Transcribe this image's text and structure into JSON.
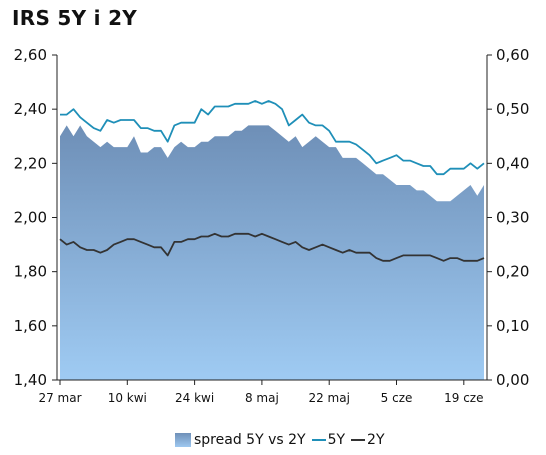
{
  "title": "IRS 5Y i 2Y",
  "colors": {
    "spread_top": "#6e8fb7",
    "spread_bottom": "#9fcbf3",
    "line_5y": "#1f8fb8",
    "line_2y": "#333333",
    "axis": "#222222"
  },
  "chart_data": {
    "type": "line",
    "title": "IRS 5Y i 2Y",
    "x_tick_labels": [
      "27 mar",
      "10 kwi",
      "24 kwi",
      "8 maj",
      "22 maj",
      "5 cze",
      "19 cze"
    ],
    "y_left": {
      "ylim": [
        1.4,
        2.6
      ],
      "ticks": [
        "1,40",
        "1,60",
        "1,80",
        "2,00",
        "2,20",
        "2,40",
        "2,60"
      ]
    },
    "y_right": {
      "ylim": [
        0.0,
        0.6
      ],
      "ticks": [
        "0,00",
        "0,10",
        "0,20",
        "0,30",
        "0,40",
        "0,50",
        "0,60"
      ]
    },
    "grid": false,
    "legend_position": "bottom",
    "series": [
      {
        "name": "spread 5Y vs 2Y",
        "type": "area",
        "axis": "right",
        "values": [
          0.45,
          0.47,
          0.45,
          0.47,
          0.45,
          0.44,
          0.43,
          0.44,
          0.43,
          0.43,
          0.43,
          0.45,
          0.42,
          0.42,
          0.43,
          0.43,
          0.41,
          0.43,
          0.44,
          0.43,
          0.43,
          0.44,
          0.44,
          0.45,
          0.45,
          0.45,
          0.46,
          0.46,
          0.47,
          0.47,
          0.47,
          0.47,
          0.46,
          0.45,
          0.44,
          0.45,
          0.43,
          0.44,
          0.45,
          0.44,
          0.43,
          0.43,
          0.41,
          0.41,
          0.41,
          0.4,
          0.39,
          0.38,
          0.38,
          0.37,
          0.36,
          0.36,
          0.36,
          0.35,
          0.35,
          0.34,
          0.33,
          0.33,
          0.33,
          0.34,
          0.35,
          0.36,
          0.34,
          0.36
        ]
      },
      {
        "name": "5Y",
        "type": "line",
        "axis": "left",
        "values": [
          2.38,
          2.38,
          2.4,
          2.37,
          2.35,
          2.33,
          2.32,
          2.36,
          2.35,
          2.36,
          2.36,
          2.36,
          2.33,
          2.33,
          2.32,
          2.32,
          2.28,
          2.34,
          2.35,
          2.35,
          2.35,
          2.4,
          2.38,
          2.41,
          2.41,
          2.41,
          2.42,
          2.42,
          2.42,
          2.43,
          2.42,
          2.43,
          2.42,
          2.4,
          2.34,
          2.36,
          2.38,
          2.35,
          2.34,
          2.34,
          2.32,
          2.28,
          2.28,
          2.28,
          2.27,
          2.25,
          2.23,
          2.2,
          2.21,
          2.22,
          2.23,
          2.21,
          2.21,
          2.2,
          2.19,
          2.19,
          2.16,
          2.16,
          2.18,
          2.18,
          2.18,
          2.2,
          2.18,
          2.2
        ]
      },
      {
        "name": "2Y",
        "type": "line",
        "axis": "left",
        "values": [
          1.92,
          1.9,
          1.91,
          1.89,
          1.88,
          1.88,
          1.87,
          1.88,
          1.9,
          1.91,
          1.92,
          1.92,
          1.91,
          1.9,
          1.89,
          1.89,
          1.86,
          1.91,
          1.91,
          1.92,
          1.92,
          1.93,
          1.93,
          1.94,
          1.93,
          1.93,
          1.94,
          1.94,
          1.94,
          1.93,
          1.94,
          1.93,
          1.92,
          1.91,
          1.9,
          1.91,
          1.89,
          1.88,
          1.89,
          1.9,
          1.89,
          1.88,
          1.87,
          1.88,
          1.87,
          1.87,
          1.87,
          1.85,
          1.84,
          1.84,
          1.85,
          1.86,
          1.86,
          1.86,
          1.86,
          1.86,
          1.85,
          1.84,
          1.85,
          1.85,
          1.84,
          1.84,
          1.84,
          1.85
        ]
      }
    ]
  },
  "legend": {
    "spread_label": "spread 5Y vs 2Y",
    "line5_label": "5Y",
    "line2_label": "2Y"
  }
}
